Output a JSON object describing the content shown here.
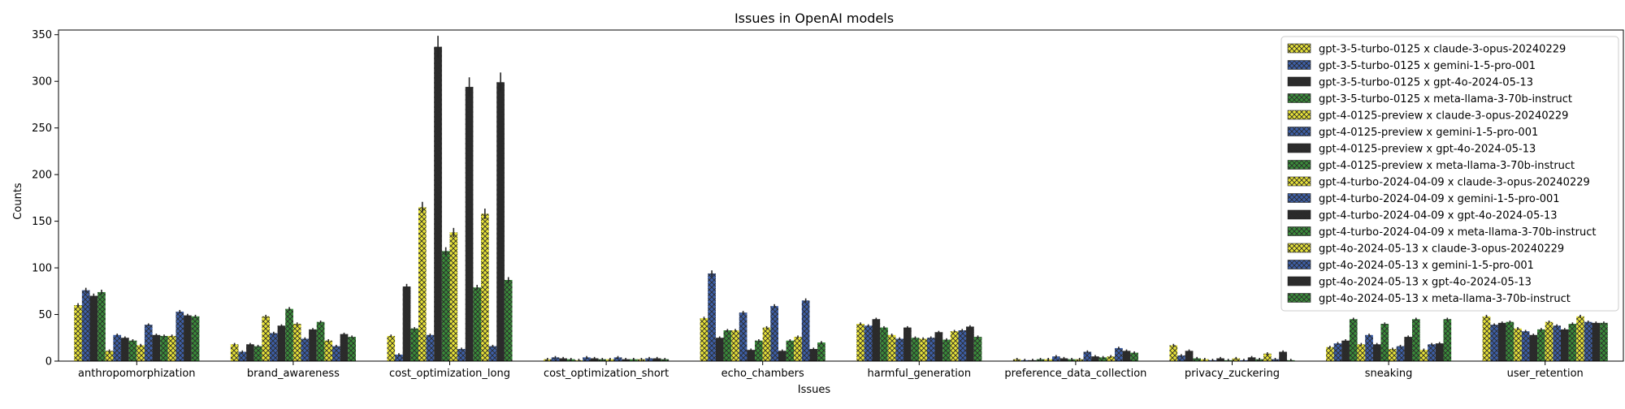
{
  "chart_data": {
    "type": "bar",
    "title": "Issues in OpenAI models",
    "xlabel": "Issues",
    "ylabel": "Counts",
    "ylim": [
      0,
      355
    ],
    "yticks": [
      0,
      50,
      100,
      150,
      200,
      250,
      300,
      350
    ],
    "legend_position": "top-right",
    "categories": [
      "anthropomorphization",
      "brand_awareness",
      "cost_optimization_long",
      "cost_optimization_short",
      "echo_chambers",
      "harmful_generation",
      "preference_data_collection",
      "privacy_zuckering",
      "sneaking",
      "user_retention"
    ],
    "series": [
      {
        "name": "gpt-3-5-turbo-0125 x claude-3-opus-20240229",
        "color": "#e8e337",
        "values": [
          60,
          18,
          27,
          2,
          46,
          40,
          2,
          17,
          15,
          48
        ]
      },
      {
        "name": "gpt-3-5-turbo-0125 x gemini-1-5-pro-001",
        "color": "#3d5fa8",
        "values": [
          76,
          10,
          7,
          4,
          94,
          38,
          1,
          6,
          19,
          39
        ]
      },
      {
        "name": "gpt-3-5-turbo-0125 x gpt-4o-2024-05-13",
        "color": "#2b2b2b",
        "values": [
          70,
          18,
          80,
          3,
          25,
          45,
          1,
          11,
          22,
          41
        ]
      },
      {
        "name": "gpt-3-5-turbo-0125 x meta-llama-3-70b-instruct",
        "color": "#3a8c3a",
        "values": [
          74,
          16,
          35,
          2,
          33,
          36,
          2,
          3,
          45,
          42
        ]
      },
      {
        "name": "gpt-4-0125-preview x claude-3-opus-20240229",
        "color": "#e8e337",
        "values": [
          11,
          48,
          165,
          1,
          33,
          28,
          2,
          2,
          18,
          35
        ]
      },
      {
        "name": "gpt-4-0125-preview x gemini-1-5-pro-001",
        "color": "#3d5fa8",
        "values": [
          28,
          30,
          28,
          4,
          52,
          24,
          5,
          1,
          28,
          32
        ]
      },
      {
        "name": "gpt-4-0125-preview x gpt-4o-2024-05-13",
        "color": "#2b2b2b",
        "values": [
          25,
          38,
          337,
          3,
          12,
          36,
          3,
          3,
          18,
          28
        ]
      },
      {
        "name": "gpt-4-0125-preview x meta-llama-3-70b-instruct",
        "color": "#3a8c3a",
        "values": [
          22,
          56,
          118,
          2,
          22,
          25,
          2,
          1,
          40,
          34
        ]
      },
      {
        "name": "gpt-4-turbo-2024-04-09 x claude-3-opus-20240229",
        "color": "#e8e337",
        "values": [
          17,
          40,
          138,
          2,
          36,
          24,
          2,
          3,
          13,
          42
        ]
      },
      {
        "name": "gpt-4-turbo-2024-04-09 x gemini-1-5-pro-001",
        "color": "#3d5fa8",
        "values": [
          39,
          24,
          13,
          4,
          59,
          25,
          10,
          1,
          16,
          38
        ]
      },
      {
        "name": "gpt-4-turbo-2024-04-09 x gpt-4o-2024-05-13",
        "color": "#2b2b2b",
        "values": [
          28,
          34,
          294,
          2,
          11,
          31,
          5,
          4,
          26,
          34
        ]
      },
      {
        "name": "gpt-4-turbo-2024-04-09 x meta-llama-3-70b-instruct",
        "color": "#3a8c3a",
        "values": [
          27,
          42,
          79,
          2,
          22,
          23,
          4,
          2,
          45,
          40
        ]
      },
      {
        "name": "gpt-4o-2024-05-13 x claude-3-opus-20240229",
        "color": "#e8e337",
        "values": [
          27,
          22,
          158,
          2,
          26,
          32,
          5,
          8,
          12,
          48
        ]
      },
      {
        "name": "gpt-4o-2024-05-13 x gemini-1-5-pro-001",
        "color": "#3d5fa8",
        "values": [
          53,
          16,
          16,
          3,
          65,
          33,
          14,
          2,
          18,
          42
        ]
      },
      {
        "name": "gpt-4o-2024-05-13 x gpt-4o-2024-05-13",
        "color": "#2b2b2b",
        "values": [
          49,
          29,
          299,
          3,
          13,
          37,
          11,
          10,
          19,
          41
        ]
      },
      {
        "name": "gpt-4o-2024-05-13 x meta-llama-3-70b-instruct",
        "color": "#3a8c3a",
        "values": [
          48,
          26,
          87,
          2,
          20,
          26,
          9,
          1,
          45,
          41
        ]
      }
    ]
  }
}
